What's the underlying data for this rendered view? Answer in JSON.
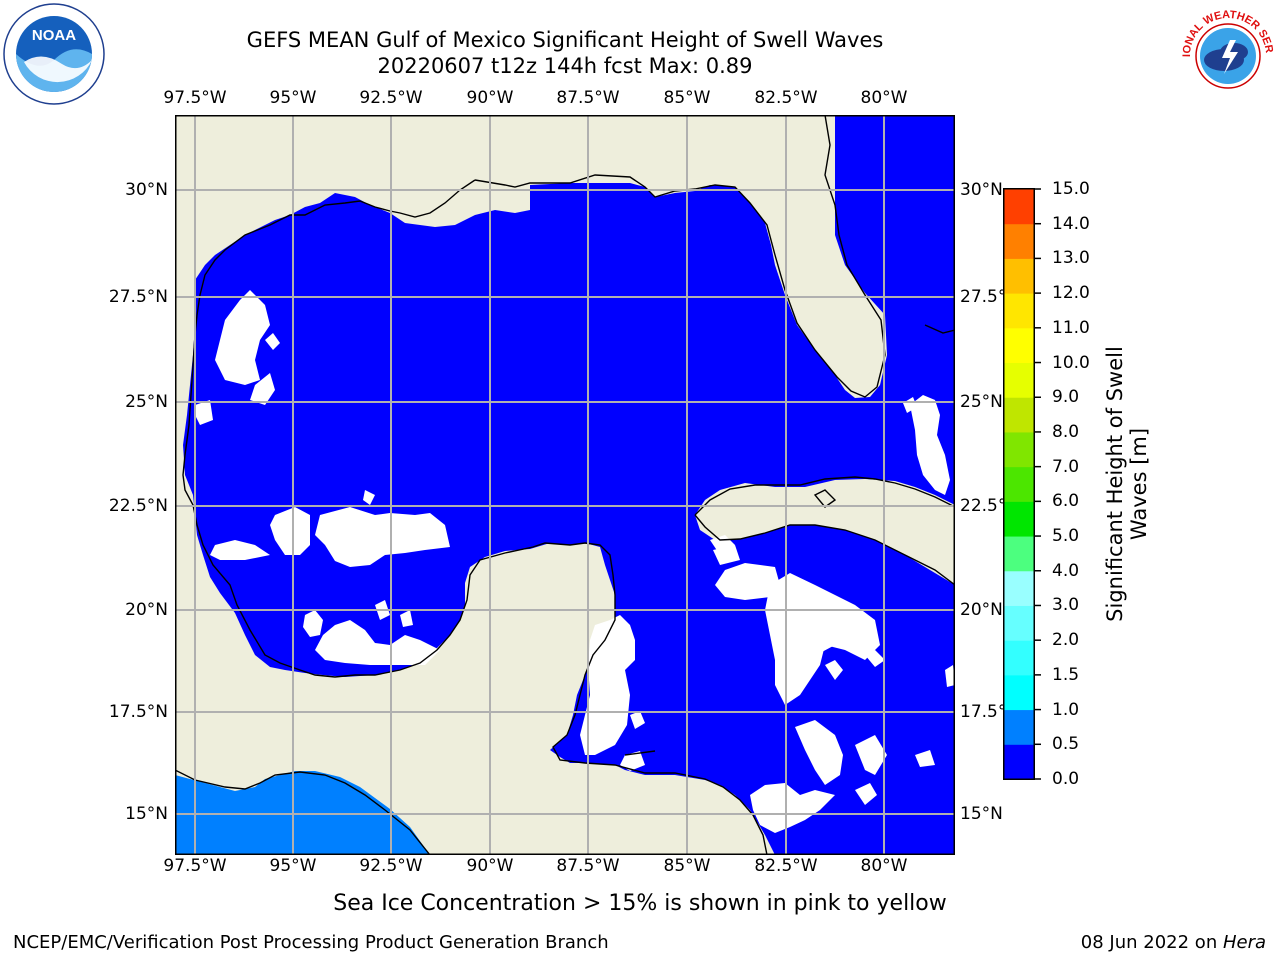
{
  "header": {
    "title_line1": "GEFS MEAN Gulf of Mexico Significant Height of Swell Waves",
    "title_line2": "20220607 t12z 144h fcst   Max: 0.89"
  },
  "logos": {
    "left": {
      "icon": "noaa-logo",
      "text": "NOAA"
    },
    "right": {
      "icon": "national-weather-service-logo",
      "text": "NATIONAL WEATHER SERVICE"
    }
  },
  "axes": {
    "lon_ticks": [
      "97.5°W",
      "95°W",
      "92.5°W",
      "90°W",
      "87.5°W",
      "85°W",
      "82.5°W",
      "80°W"
    ],
    "lat_ticks": [
      "30°N",
      "27.5°N",
      "25°N",
      "22.5°N",
      "20°N",
      "17.5°N",
      "15°N"
    ]
  },
  "colorbar": {
    "label_line1": "Significant Height of Swell",
    "label_line2": "Waves [m]",
    "ticks": [
      "15.0",
      "14.0",
      "13.0",
      "12.0",
      "11.0",
      "10.0",
      "9.0",
      "8.0",
      "7.0",
      "6.0",
      "5.0",
      "4.0",
      "3.0",
      "2.0",
      "1.5",
      "1.0",
      "0.5",
      "0.0"
    ],
    "colors_bottom_to_top": [
      "#0000ff",
      "#0080ff",
      "#00ffff",
      "#33ffff",
      "#66ffff",
      "#99ffff",
      "#4cff7f",
      "#00e600",
      "#4ce600",
      "#80e600",
      "#bfe600",
      "#e6ff00",
      "#ffff00",
      "#ffe600",
      "#ffbf00",
      "#ff8000",
      "#ff4000",
      "#ff0000"
    ]
  },
  "map_colors": {
    "land": "#eeeedc",
    "ocean_low": "#0000ff",
    "ocean_mid": "#0080ff",
    "no_data": "#ffffff",
    "grid": "#b0b0b0"
  },
  "caption": "Sea Ice Concentration > 15% is shown in pink to yellow",
  "footer": {
    "left": "NCEP/EMC/Verification Post Processing Product Generation Branch",
    "right_date": "08 Jun 2022 on ",
    "right_host": "Hera"
  }
}
